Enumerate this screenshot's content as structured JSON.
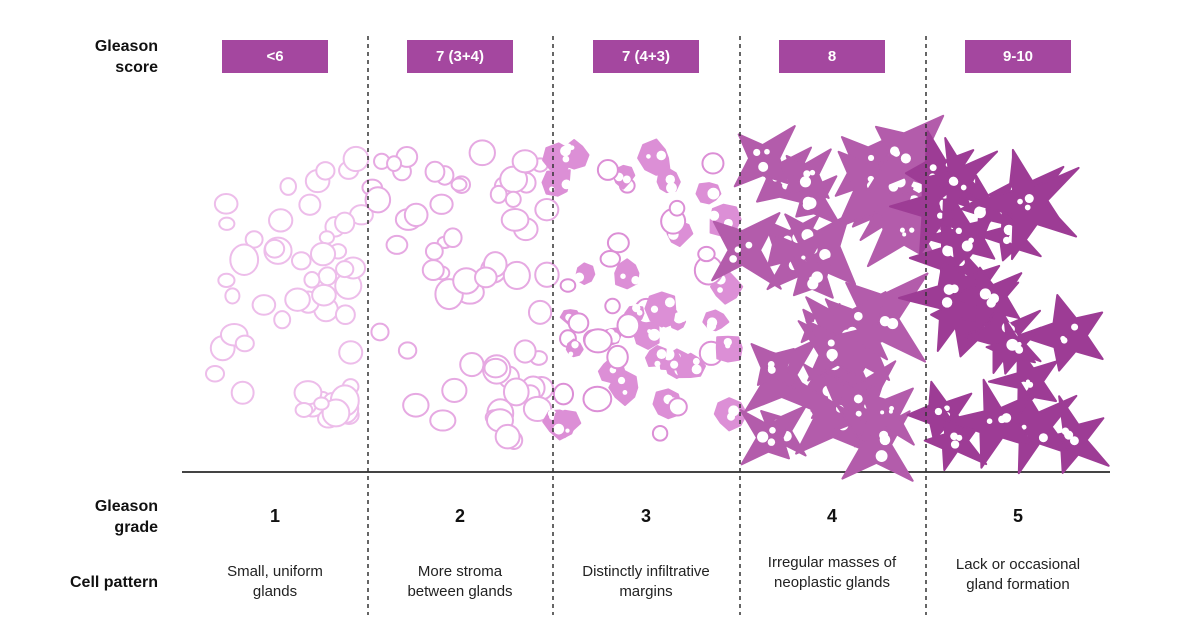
{
  "row_labels": {
    "score": "Gleason score",
    "grade": "Gleason grade",
    "pattern": "Cell pattern"
  },
  "columns": [
    {
      "score": "<6",
      "grade": "1",
      "pattern": "Small, uniform glands"
    },
    {
      "score": "7 (3+4)",
      "grade": "2",
      "pattern": "More stroma between glands"
    },
    {
      "score": "7 (4+3)",
      "grade": "3",
      "pattern": "Distinctly infiltrative margins"
    },
    {
      "score": "8",
      "grade": "4",
      "pattern": "Irregular masses of neoplastic glands"
    },
    {
      "score": "9-10",
      "grade": "5",
      "pattern": "Lack or occasional gland formation"
    }
  ]
}
